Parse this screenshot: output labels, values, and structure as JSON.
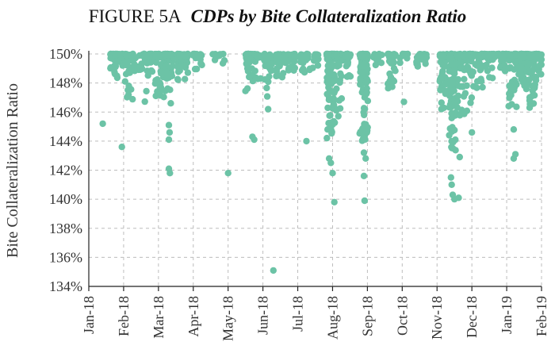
{
  "chart_data": {
    "type": "scatter",
    "title_prefix": "FIGURE 5A",
    "title": "CDPs by Bite Collateralization Ratio",
    "xlabel": "",
    "ylabel": "Bite Collateralization Ratio",
    "x_ticks": [
      "Jan-18",
      "Feb-18",
      "Mar-18",
      "Apr-18",
      "May-18",
      "Jun-18",
      "Jul-18",
      "Aug-18",
      "Sep-18",
      "Oct-18",
      "Nov-18",
      "Dec-18",
      "Jan-19",
      "Feb-19"
    ],
    "y_ticks": [
      "134%",
      "136%",
      "138%",
      "140%",
      "142%",
      "144%",
      "146%",
      "148%",
      "150%"
    ],
    "ylim": [
      134,
      150
    ],
    "xlim_months": [
      0,
      13
    ],
    "grid": true,
    "color": "#6cc3a6",
    "clusters": [
      {
        "x": 0.7,
        "spread": 0.08,
        "ymin": 147.3,
        "n": 16
      },
      {
        "x": 0.95,
        "spread": 0.25,
        "ymin": 148.2,
        "n": 22
      },
      {
        "x": 1.15,
        "spread": 0.12,
        "ymin": 146.8,
        "n": 24
      },
      {
        "x": 1.45,
        "spread": 0.2,
        "ymin": 148.8,
        "n": 18
      },
      {
        "x": 1.7,
        "spread": 0.15,
        "ymin": 146.4,
        "n": 16
      },
      {
        "x": 2.05,
        "spread": 0.15,
        "ymin": 147.0,
        "n": 40
      },
      {
        "x": 2.3,
        "spread": 0.12,
        "ymin": 146.6,
        "n": 38
      },
      {
        "x": 2.7,
        "spread": 0.15,
        "ymin": 147.6,
        "n": 40
      },
      {
        "x": 3.1,
        "spread": 0.15,
        "ymin": 148.6,
        "n": 12
      },
      {
        "x": 3.7,
        "spread": 0.2,
        "ymin": 149.3,
        "n": 8
      },
      {
        "x": 4.6,
        "spread": 0.12,
        "ymin": 146.5,
        "n": 30
      },
      {
        "x": 4.85,
        "spread": 0.12,
        "ymin": 148.2,
        "n": 14
      },
      {
        "x": 5.15,
        "spread": 0.12,
        "ymin": 146.8,
        "n": 20
      },
      {
        "x": 5.5,
        "spread": 0.12,
        "ymin": 148.4,
        "n": 24
      },
      {
        "x": 5.8,
        "spread": 0.15,
        "ymin": 148.6,
        "n": 24
      },
      {
        "x": 6.2,
        "spread": 0.15,
        "ymin": 148.7,
        "n": 18
      },
      {
        "x": 6.5,
        "spread": 0.1,
        "ymin": 149.0,
        "n": 8
      },
      {
        "x": 6.95,
        "spread": 0.12,
        "ymin": 143.8,
        "n": 70
      },
      {
        "x": 7.15,
        "spread": 0.12,
        "ymin": 145.5,
        "n": 40
      },
      {
        "x": 7.4,
        "spread": 0.12,
        "ymin": 148.3,
        "n": 20
      },
      {
        "x": 7.9,
        "spread": 0.12,
        "ymin": 143.6,
        "n": 75
      },
      {
        "x": 8.3,
        "spread": 0.12,
        "ymin": 149.0,
        "n": 8
      },
      {
        "x": 8.7,
        "spread": 0.12,
        "ymin": 147.2,
        "n": 18
      },
      {
        "x": 9.05,
        "spread": 0.12,
        "ymin": 149.3,
        "n": 8
      },
      {
        "x": 9.55,
        "spread": 0.15,
        "ymin": 149.0,
        "n": 16
      },
      {
        "x": 10.2,
        "spread": 0.12,
        "ymin": 146.2,
        "n": 40
      },
      {
        "x": 10.45,
        "spread": 0.1,
        "ymin": 143.3,
        "n": 80
      },
      {
        "x": 10.7,
        "spread": 0.12,
        "ymin": 145.5,
        "n": 34
      },
      {
        "x": 10.95,
        "spread": 0.1,
        "ymin": 145.6,
        "n": 26
      },
      {
        "x": 11.2,
        "spread": 0.12,
        "ymin": 147.2,
        "n": 24
      },
      {
        "x": 11.5,
        "spread": 0.15,
        "ymin": 148.3,
        "n": 22
      },
      {
        "x": 11.85,
        "spread": 0.15,
        "ymin": 148.8,
        "n": 20
      },
      {
        "x": 12.2,
        "spread": 0.15,
        "ymin": 146.2,
        "n": 50
      },
      {
        "x": 12.5,
        "spread": 0.12,
        "ymin": 147.5,
        "n": 46
      },
      {
        "x": 12.75,
        "spread": 0.1,
        "ymin": 146.2,
        "n": 40
      },
      {
        "x": 12.95,
        "spread": 0.05,
        "ymin": 148.4,
        "n": 14
      }
    ],
    "outliers": [
      {
        "x": 0.4,
        "y": 145.2
      },
      {
        "x": 0.95,
        "y": 143.6
      },
      {
        "x": 2.3,
        "y": 145.1
      },
      {
        "x": 2.32,
        "y": 144.6
      },
      {
        "x": 2.3,
        "y": 144.1
      },
      {
        "x": 2.3,
        "y": 142.1
      },
      {
        "x": 2.33,
        "y": 141.8
      },
      {
        "x": 4.0,
        "y": 141.8
      },
      {
        "x": 4.7,
        "y": 144.3
      },
      {
        "x": 4.75,
        "y": 144.1
      },
      {
        "x": 5.15,
        "y": 146.2
      },
      {
        "x": 5.3,
        "y": 135.1
      },
      {
        "x": 6.25,
        "y": 144.0
      },
      {
        "x": 6.9,
        "y": 142.8
      },
      {
        "x": 6.95,
        "y": 142.5
      },
      {
        "x": 7.0,
        "y": 141.8
      },
      {
        "x": 7.05,
        "y": 139.8
      },
      {
        "x": 7.9,
        "y": 141.6
      },
      {
        "x": 7.92,
        "y": 139.9
      },
      {
        "x": 7.9,
        "y": 143.2
      },
      {
        "x": 7.95,
        "y": 142.8
      },
      {
        "x": 9.05,
        "y": 146.7
      },
      {
        "x": 10.4,
        "y": 141.5
      },
      {
        "x": 10.42,
        "y": 141.0
      },
      {
        "x": 10.45,
        "y": 140.3
      },
      {
        "x": 10.5,
        "y": 140.0
      },
      {
        "x": 10.62,
        "y": 140.1
      },
      {
        "x": 10.65,
        "y": 142.9
      },
      {
        "x": 11.0,
        "y": 144.6
      },
      {
        "x": 12.2,
        "y": 144.8
      },
      {
        "x": 12.25,
        "y": 143.1
      },
      {
        "x": 12.2,
        "y": 142.8
      }
    ]
  }
}
